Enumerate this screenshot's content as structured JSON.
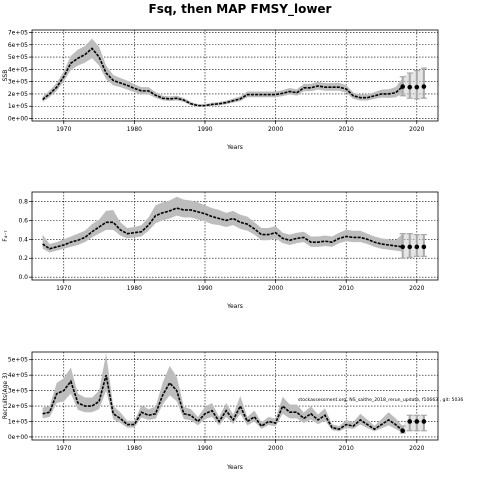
{
  "title": "Fsq, then MAP FMSY_lower",
  "annotation": "stockassessment.org, NS_saithe_2018_rerun_update, f10663 , git: 5036",
  "colors": {
    "band": "#bdbdbd",
    "line": "#000000",
    "forecast_band": "#d0d0d0"
  },
  "chart_data": [
    {
      "type": "line",
      "ylabel": "SSB",
      "xlabel": "Years",
      "xlim": [
        1965.5,
        2023
      ],
      "ylim": [
        -20000,
        720000
      ],
      "xticks": [
        1970,
        1980,
        1990,
        2000,
        2010,
        2020
      ],
      "yticks": [
        0,
        100000,
        200000,
        300000,
        400000,
        500000,
        600000,
        700000
      ],
      "ytick_labels": [
        "0e+00",
        "1e+05",
        "2e+05",
        "3e+05",
        "4e+05",
        "5e+05",
        "6e+05",
        "7e+05"
      ],
      "grid": true,
      "x": [
        1967,
        1968,
        1969,
        1970,
        1971,
        1972,
        1973,
        1974,
        1975,
        1976,
        1977,
        1978,
        1979,
        1980,
        1981,
        1982,
        1983,
        1984,
        1985,
        1986,
        1987,
        1988,
        1989,
        1990,
        1991,
        1992,
        1993,
        1994,
        1995,
        1996,
        1997,
        1998,
        1999,
        2000,
        2001,
        2002,
        2003,
        2004,
        2005,
        2006,
        2007,
        2008,
        2009,
        2010,
        2011,
        2012,
        2013,
        2014,
        2015,
        2016,
        2017,
        2018
      ],
      "values": [
        155000,
        200000,
        255000,
        340000,
        450000,
        490000,
        520000,
        570000,
        500000,
        370000,
        310000,
        290000,
        270000,
        245000,
        225000,
        225000,
        190000,
        165000,
        160000,
        165000,
        150000,
        120000,
        105000,
        105000,
        115000,
        120000,
        130000,
        145000,
        160000,
        195000,
        195000,
        195000,
        195000,
        195000,
        205000,
        220000,
        210000,
        250000,
        250000,
        265000,
        255000,
        255000,
        255000,
        240000,
        185000,
        170000,
        170000,
        185000,
        200000,
        200000,
        210000,
        260000
      ],
      "lower": [
        135000,
        175000,
        225000,
        300000,
        395000,
        430000,
        455000,
        490000,
        430000,
        320000,
        270000,
        255000,
        235000,
        215000,
        198000,
        198000,
        168000,
        148000,
        143000,
        148000,
        134000,
        108000,
        94000,
        94000,
        103000,
        107000,
        116000,
        129000,
        142000,
        173000,
        173000,
        173000,
        173000,
        173000,
        182000,
        195000,
        186000,
        222000,
        222000,
        235000,
        226000,
        226000,
        226000,
        210000,
        160000,
        147000,
        147000,
        160000,
        170000,
        168000,
        172000,
        205000
      ],
      "upper": [
        178000,
        228000,
        290000,
        385000,
        510000,
        560000,
        590000,
        650000,
        585000,
        430000,
        355000,
        330000,
        308000,
        278000,
        255000,
        255000,
        215000,
        185000,
        180000,
        185000,
        168000,
        134000,
        117000,
        117000,
        128000,
        134000,
        146000,
        163000,
        180000,
        220000,
        220000,
        220000,
        220000,
        220000,
        231000,
        248000,
        237000,
        282000,
        282000,
        298000,
        288000,
        288000,
        290000,
        272000,
        212000,
        195000,
        197000,
        215000,
        235000,
        238000,
        255000,
        330000
      ],
      "forecast": {
        "x": [
          2018,
          2019,
          2020,
          2021
        ],
        "values": [
          260000,
          255000,
          255000,
          260000
        ],
        "lower": [
          185000,
          165000,
          160000,
          165000
        ],
        "upper": [
          340000,
          370000,
          390000,
          410000
        ]
      }
    },
    {
      "type": "line",
      "ylabel": "F₄₋₇",
      "xlabel": "Years",
      "xlim": [
        1965.5,
        2023
      ],
      "ylim": [
        -0.03,
        0.9
      ],
      "xticks": [
        1970,
        1980,
        1990,
        2000,
        2010,
        2020
      ],
      "yticks": [
        0.0,
        0.2,
        0.4,
        0.6,
        0.8
      ],
      "ytick_labels": [
        "0.0",
        "0.2",
        "0.4",
        "0.6",
        "0.8"
      ],
      "grid": true,
      "x": [
        1967,
        1968,
        1969,
        1970,
        1971,
        1972,
        1973,
        1974,
        1975,
        1976,
        1977,
        1978,
        1979,
        1980,
        1981,
        1982,
        1983,
        1984,
        1985,
        1986,
        1987,
        1988,
        1989,
        1990,
        1991,
        1992,
        1993,
        1994,
        1995,
        1996,
        1997,
        1998,
        1999,
        2000,
        2001,
        2002,
        2003,
        2004,
        2005,
        2006,
        2007,
        2008,
        2009,
        2010,
        2011,
        2012,
        2013,
        2014,
        2015,
        2016,
        2017,
        2018
      ],
      "values": [
        0.35,
        0.3,
        0.32,
        0.34,
        0.37,
        0.39,
        0.42,
        0.48,
        0.53,
        0.58,
        0.58,
        0.5,
        0.46,
        0.47,
        0.48,
        0.55,
        0.65,
        0.68,
        0.7,
        0.73,
        0.71,
        0.71,
        0.69,
        0.67,
        0.64,
        0.62,
        0.6,
        0.62,
        0.58,
        0.56,
        0.51,
        0.45,
        0.45,
        0.47,
        0.41,
        0.39,
        0.41,
        0.42,
        0.37,
        0.37,
        0.38,
        0.37,
        0.41,
        0.43,
        0.42,
        0.42,
        0.4,
        0.37,
        0.35,
        0.34,
        0.33,
        0.32
      ],
      "lower": [
        0.3,
        0.26,
        0.28,
        0.3,
        0.32,
        0.34,
        0.37,
        0.42,
        0.46,
        0.5,
        0.5,
        0.44,
        0.41,
        0.42,
        0.43,
        0.49,
        0.57,
        0.6,
        0.62,
        0.65,
        0.63,
        0.63,
        0.61,
        0.59,
        0.56,
        0.55,
        0.53,
        0.55,
        0.51,
        0.49,
        0.45,
        0.39,
        0.39,
        0.41,
        0.36,
        0.34,
        0.36,
        0.37,
        0.32,
        0.32,
        0.33,
        0.32,
        0.36,
        0.38,
        0.37,
        0.37,
        0.35,
        0.32,
        0.3,
        0.29,
        0.28,
        0.27
      ],
      "upper": [
        0.45,
        0.35,
        0.37,
        0.4,
        0.43,
        0.46,
        0.49,
        0.56,
        0.61,
        0.7,
        0.71,
        0.58,
        0.52,
        0.53,
        0.55,
        0.63,
        0.76,
        0.79,
        0.81,
        0.85,
        0.82,
        0.81,
        0.79,
        0.76,
        0.73,
        0.71,
        0.68,
        0.7,
        0.66,
        0.64,
        0.58,
        0.52,
        0.52,
        0.54,
        0.47,
        0.45,
        0.47,
        0.48,
        0.43,
        0.43,
        0.44,
        0.43,
        0.47,
        0.5,
        0.49,
        0.49,
        0.46,
        0.43,
        0.41,
        0.4,
        0.39,
        0.46
      ],
      "forecast": {
        "x": [
          2018,
          2019,
          2020,
          2021
        ],
        "values": [
          0.32,
          0.32,
          0.32,
          0.32
        ],
        "lower": [
          0.2,
          0.21,
          0.22,
          0.22
        ],
        "upper": [
          0.46,
          0.46,
          0.45,
          0.45
        ]
      }
    },
    {
      "type": "line",
      "ylabel": "Recruits(Age 3)",
      "xlabel": "Years",
      "xlim": [
        1965.5,
        2023
      ],
      "ylim": [
        -20000,
        550000
      ],
      "xticks": [
        1970,
        1980,
        1990,
        2000,
        2010,
        2020
      ],
      "yticks": [
        0,
        100000,
        200000,
        300000,
        400000,
        500000
      ],
      "ytick_labels": [
        "0e+00",
        "1e+05",
        "2e+05",
        "3e+05",
        "4e+05",
        "5e+05"
      ],
      "grid": true,
      "x": [
        1967,
        1968,
        1969,
        1970,
        1971,
        1972,
        1973,
        1974,
        1975,
        1976,
        1977,
        1978,
        1979,
        1980,
        1981,
        1982,
        1983,
        1984,
        1985,
        1986,
        1987,
        1988,
        1989,
        1990,
        1991,
        1992,
        1993,
        1994,
        1995,
        1996,
        1997,
        1998,
        1999,
        2000,
        2001,
        2002,
        2003,
        2004,
        2005,
        2006,
        2007,
        2008,
        2009,
        2010,
        2011,
        2012,
        2013,
        2014,
        2015,
        2016,
        2017,
        2018
      ],
      "values": [
        150000,
        160000,
        280000,
        300000,
        360000,
        220000,
        200000,
        200000,
        230000,
        400000,
        150000,
        120000,
        80000,
        80000,
        160000,
        140000,
        150000,
        270000,
        350000,
        300000,
        150000,
        140000,
        100000,
        150000,
        170000,
        100000,
        170000,
        110000,
        200000,
        100000,
        130000,
        70000,
        100000,
        90000,
        200000,
        160000,
        160000,
        120000,
        150000,
        110000,
        140000,
        60000,
        50000,
        80000,
        70000,
        110000,
        80000,
        50000,
        80000,
        110000,
        80000,
        40000
      ],
      "lower": [
        120000,
        130000,
        220000,
        230000,
        280000,
        175000,
        160000,
        160000,
        180000,
        300000,
        115000,
        90000,
        60000,
        60000,
        125000,
        110000,
        118000,
        210000,
        270000,
        230000,
        115000,
        108000,
        75000,
        115000,
        130000,
        75000,
        130000,
        84000,
        150000,
        75000,
        100000,
        52000,
        76000,
        68000,
        150000,
        120000,
        120000,
        90000,
        113000,
        82000,
        105000,
        43000,
        36000,
        58000,
        51000,
        80000,
        57000,
        36000,
        55000,
        75000,
        52000,
        25000
      ],
      "upper": [
        190000,
        200000,
        350000,
        380000,
        450000,
        280000,
        255000,
        255000,
        300000,
        540000,
        200000,
        160000,
        105000,
        105000,
        205000,
        180000,
        195000,
        350000,
        460000,
        390000,
        195000,
        180000,
        130000,
        195000,
        220000,
        130000,
        220000,
        145000,
        265000,
        130000,
        170000,
        94000,
        130000,
        118000,
        260000,
        210000,
        210000,
        158000,
        198000,
        145000,
        185000,
        82000,
        70000,
        110000,
        96000,
        150000,
        112000,
        72000,
        115000,
        160000,
        120000,
        70000
      ],
      "forecast": {
        "x": [
          2018,
          2019,
          2020,
          2021
        ],
        "values": [
          40000,
          100000,
          100000,
          100000
        ],
        "lower": [
          25000,
          40000,
          40000,
          40000
        ],
        "upper": [
          70000,
          140000,
          140000,
          140000
        ]
      }
    }
  ]
}
